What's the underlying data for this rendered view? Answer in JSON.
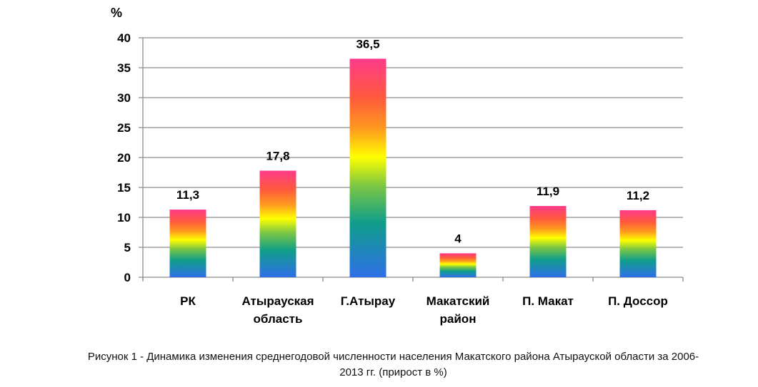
{
  "chart_data": {
    "type": "bar",
    "title": "",
    "ylabel": "%",
    "xlabel": "",
    "ylim": [
      0,
      40
    ],
    "yticks": [
      0,
      5,
      10,
      15,
      20,
      25,
      30,
      35,
      40
    ],
    "grid": true,
    "legend": null,
    "categories": [
      "РК",
      "Атырауская область",
      "Г.Атырау",
      "Макатский район",
      "П. Макат",
      "П. Доссор"
    ],
    "category_lines": [
      [
        "РК"
      ],
      [
        "Атырауская",
        "область"
      ],
      [
        "Г.Атырау"
      ],
      [
        "Макатский",
        "район"
      ],
      [
        "П. Макат"
      ],
      [
        "П. Доссор"
      ]
    ],
    "values": [
      11.3,
      17.8,
      36.5,
      4,
      11.9,
      11.2
    ],
    "data_labels": [
      "11,3",
      "17,8",
      "36,5",
      "4",
      "11,9",
      "11,2"
    ],
    "bar_fill": "vertical rainbow gradient",
    "gradient_colors": [
      "#2f6fe8",
      "#0f9e8a",
      "#7dc742",
      "#ffff00",
      "#ff9a1f",
      "#ff5a3c",
      "#ff3a8a"
    ]
  },
  "caption": {
    "line1": "Рисунок 1 - Динамика изменения среднегодовой численности населения Макатского района Атырауской области за 2006-",
    "line2": "2013 гг. (прирост в %)"
  }
}
